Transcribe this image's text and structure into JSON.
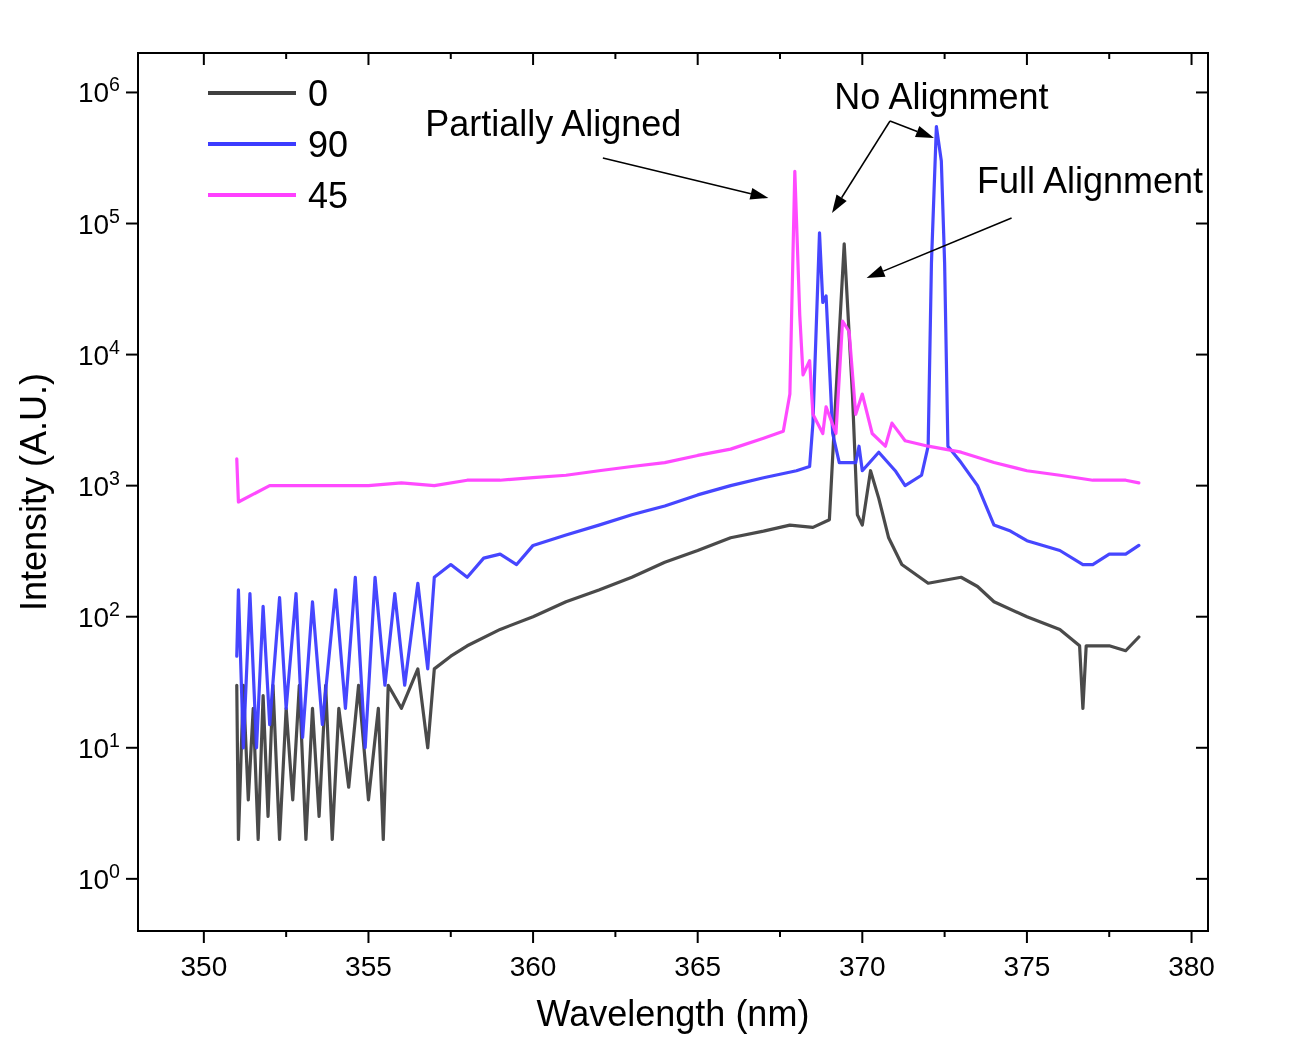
{
  "chart_data": {
    "type": "line",
    "xlabel": "Wavelength (nm)",
    "ylabel": "Intensity (A.U.)",
    "xlim": [
      348,
      380.5
    ],
    "xticks": [
      350,
      {
        "value": 352.5,
        "label": null
      },
      355,
      {
        "value": 357.5,
        "label": null
      },
      360,
      {
        "value": 362.5,
        "label": null
      },
      365,
      {
        "value": 367.5,
        "label": null
      },
      370,
      {
        "value": 372.5,
        "label": null
      },
      375,
      {
        "value": 377.5,
        "label": null
      },
      380
    ],
    "ylim": [
      0.4,
      2000000
    ],
    "log": "y",
    "yticks": [
      {
        "value": 1,
        "label": "10$^{0}$"
      },
      {
        "value": 10,
        "label": "10$^{1}$"
      },
      {
        "value": 100,
        "label": "10$^{2}$"
      },
      {
        "value": 1000,
        "label": "10$^{3}$"
      },
      {
        "value": 10000,
        "label": "10$^{4}$"
      },
      {
        "value": 100000,
        "label": "10$^{5}$"
      },
      {
        "value": 1000000,
        "label": "10$^{6}$"
      }
    ],
    "grid": false,
    "legend": "top left",
    "marker": "none",
    "line_style": "solid",
    "annotations": [
      "Partially Aligned",
      "No Alignment",
      "Full Alignment"
    ],
    "series": [
      {
        "name": "0",
        "color": "#404040",
        "x": [
          351.0,
          351.05,
          351.2,
          351.35,
          351.5,
          351.65,
          351.8,
          351.95,
          352.1,
          352.3,
          352.5,
          352.7,
          352.9,
          353.1,
          353.3,
          353.5,
          353.7,
          353.9,
          354.1,
          354.4,
          354.7,
          355.0,
          355.3,
          355.45,
          355.6,
          356.0,
          356.5,
          356.8,
          357.0,
          357.5,
          358,
          359,
          360,
          361,
          362,
          363,
          364,
          365,
          366,
          367,
          367.8,
          368.5,
          369,
          369.2,
          369.45,
          369.7,
          369.85,
          370,
          370.25,
          370.5,
          370.8,
          371.2,
          372,
          373,
          373.5,
          374,
          375,
          376,
          376.6,
          376.7,
          376.8,
          377.5,
          378,
          378.4
        ],
        "values": [
          30,
          2,
          30,
          4,
          20,
          2,
          25,
          3,
          30,
          2,
          20,
          4,
          30,
          2,
          20,
          3,
          30,
          2,
          20,
          5,
          30,
          4,
          20,
          2,
          30,
          20,
          40,
          10,
          40,
          50,
          60,
          80,
          100,
          130,
          160,
          200,
          260,
          320,
          400,
          450,
          500,
          480,
          550,
          5000,
          70000,
          5000,
          600,
          500,
          1300,
          800,
          400,
          250,
          180,
          200,
          170,
          130,
          100,
          80,
          60,
          20,
          60,
          60,
          55,
          70
        ]
      },
      {
        "name": "90",
        "color": "#3c3cff",
        "x": [
          351.0,
          351.05,
          351.2,
          351.4,
          351.6,
          351.8,
          352,
          352.3,
          352.5,
          352.8,
          353,
          353.3,
          353.6,
          354,
          354.3,
          354.6,
          354.9,
          355.2,
          355.5,
          355.8,
          356.1,
          356.5,
          356.8,
          357,
          357.5,
          358,
          358.5,
          359,
          359.5,
          360,
          361,
          362,
          363,
          364,
          365,
          366,
          367,
          368,
          368.4,
          368.5,
          368.7,
          368.8,
          368.9,
          369.1,
          369.3,
          369.8,
          369.9,
          370.0,
          370.5,
          371,
          371.3,
          371.8,
          372.0,
          372.1,
          372.25,
          372.4,
          372.5,
          372.6,
          373,
          373.5,
          374,
          374.5,
          375,
          376,
          376.7,
          377,
          377.5,
          378,
          378.4
        ],
        "values": [
          50,
          160,
          10,
          150,
          10,
          120,
          15,
          140,
          20,
          150,
          12,
          130,
          15,
          160,
          20,
          200,
          10,
          200,
          30,
          150,
          30,
          180,
          40,
          200,
          250,
          200,
          280,
          300,
          250,
          350,
          420,
          500,
          600,
          700,
          850,
          1000,
          1150,
          1300,
          1400,
          3000,
          85000,
          25000,
          28000,
          2500,
          1500,
          1500,
          2000,
          1300,
          1800,
          1300,
          1000,
          1200,
          2000,
          50000,
          550000,
          300000,
          50000,
          2000,
          1500,
          1000,
          500,
          450,
          380,
          320,
          250,
          250,
          300,
          300,
          350
        ]
      },
      {
        "name": "45",
        "color": "#ff40ff",
        "x": [
          351.0,
          351.05,
          352,
          353,
          354,
          355,
          356,
          357,
          358,
          359,
          360,
          361,
          362,
          363,
          364,
          365,
          366,
          367,
          367.6,
          367.8,
          367.95,
          368.1,
          368.2,
          368.4,
          368.5,
          368.8,
          368.9,
          369.2,
          369.4,
          369.6,
          369.8,
          370,
          370.3,
          370.7,
          370.9,
          371.3,
          372,
          373,
          374,
          375,
          376,
          377,
          378,
          378.4
        ],
        "values": [
          1600,
          750,
          1000,
          1000,
          1000,
          1000,
          1050,
          1000,
          1100,
          1100,
          1150,
          1200,
          1300,
          1400,
          1500,
          1700,
          1900,
          2300,
          2600,
          5000,
          250000,
          20000,
          7000,
          9000,
          3500,
          2500,
          4000,
          2500,
          18000,
          15000,
          3500,
          5000,
          2500,
          2000,
          3000,
          2200,
          2000,
          1800,
          1500,
          1300,
          1200,
          1100,
          1100,
          1050
        ]
      }
    ]
  }
}
